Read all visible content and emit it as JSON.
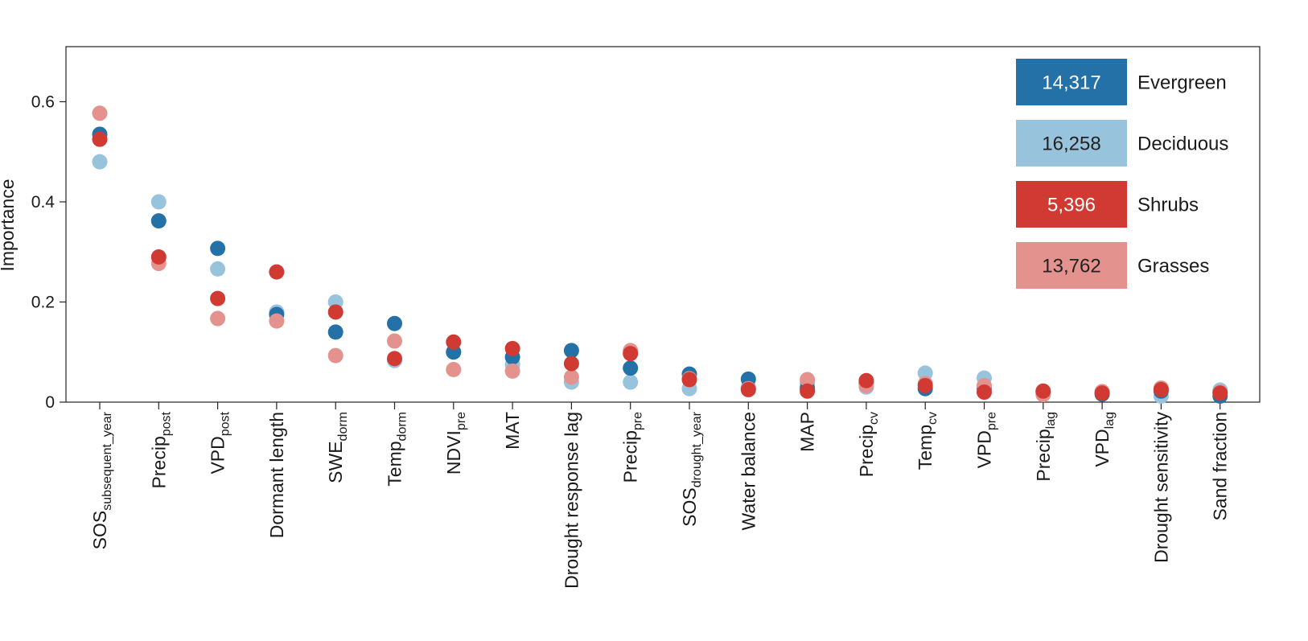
{
  "chart_data": {
    "type": "scatter",
    "ylabel": "Importance",
    "ylim": [
      0,
      0.71
    ],
    "yticks": [
      {
        "value": 0,
        "label": "0"
      },
      {
        "value": 0.2,
        "label": "0.2"
      },
      {
        "value": 0.4,
        "label": "0.4"
      },
      {
        "value": 0.6,
        "label": "0.6"
      }
    ],
    "grid": false,
    "legend_position": "top-right",
    "categories": [
      {
        "base": "SOS",
        "sub": "subsequent_year"
      },
      {
        "base": "Precip",
        "sub": "post"
      },
      {
        "base": "VPD",
        "sub": "post"
      },
      {
        "base": "Dormant length",
        "sub": ""
      },
      {
        "base": "SWE",
        "sub": "dorm"
      },
      {
        "base": "Temp",
        "sub": "dorm"
      },
      {
        "base": "NDVI",
        "sub": "pre"
      },
      {
        "base": "MAT",
        "sub": ""
      },
      {
        "base": "Drought response lag",
        "sub": ""
      },
      {
        "base": "Precip",
        "sub": "pre"
      },
      {
        "base": "SOS",
        "sub": "drought_year"
      },
      {
        "base": "Water balance",
        "sub": ""
      },
      {
        "base": "MAP",
        "sub": ""
      },
      {
        "base": "Precip",
        "sub": "cv"
      },
      {
        "base": "Temp",
        "sub": "cv"
      },
      {
        "base": "VPD",
        "sub": "pre"
      },
      {
        "base": "Precip",
        "sub": "lag"
      },
      {
        "base": "VPD",
        "sub": "lag"
      },
      {
        "base": "Drought sensitivity",
        "sub": ""
      },
      {
        "base": "Sand fraction",
        "sub": ""
      }
    ],
    "series": [
      {
        "name": "Evergreen",
        "count": "14,317",
        "color": "#2471a8",
        "text_color": "#ffffff",
        "values": [
          0.535,
          0.362,
          0.307,
          0.175,
          0.14,
          0.157,
          0.1,
          0.09,
          0.103,
          0.068,
          0.056,
          0.046,
          0.028,
          0.038,
          0.027,
          0.028,
          0.02,
          0.016,
          0.022,
          0.012
        ]
      },
      {
        "name": "Deciduous",
        "count": "16,258",
        "color": "#98c3dd",
        "text_color": "#222222",
        "values": [
          0.48,
          0.4,
          0.266,
          0.18,
          0.2,
          0.083,
          0.1,
          0.075,
          0.04,
          0.04,
          0.027,
          0.03,
          0.038,
          0.03,
          0.058,
          0.048,
          0.018,
          0.02,
          0.012,
          0.024
        ]
      },
      {
        "name": "Shrubs",
        "count": "5,396",
        "color": "#d13a33",
        "text_color": "#ffffff",
        "values": [
          0.525,
          0.29,
          0.207,
          0.26,
          0.18,
          0.087,
          0.12,
          0.107,
          0.077,
          0.097,
          0.045,
          0.025,
          0.022,
          0.043,
          0.033,
          0.02,
          0.022,
          0.018,
          0.025,
          0.018
        ]
      },
      {
        "name": "Grasses",
        "count": "13,762",
        "color": "#e4928e",
        "text_color": "#222222",
        "values": [
          0.577,
          0.277,
          0.167,
          0.162,
          0.093,
          0.122,
          0.065,
          0.062,
          0.05,
          0.103,
          0.047,
          0.027,
          0.045,
          0.033,
          0.037,
          0.033,
          0.015,
          0.021,
          0.028,
          0.02
        ]
      }
    ]
  }
}
